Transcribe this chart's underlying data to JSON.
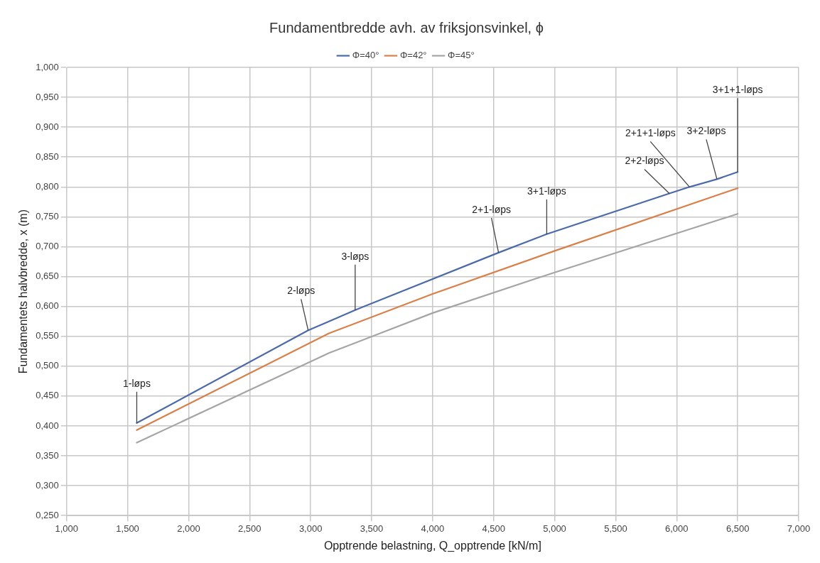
{
  "chart_data": {
    "type": "line",
    "title": "Fundamentbredde avh. av friksjonsvinkel, ϕ",
    "xlabel": "Opptrende belastning, Q_opptrende [kN/m]",
    "ylabel": "Fundamentets halvbredde, x (m)",
    "series": [
      {
        "name": "Φ=40°",
        "color": "#4a6aa8",
        "x": [
          1.575,
          2.98,
          3.15,
          3.365,
          4.54,
          4.935,
          5.94,
          6.105,
          6.33,
          6.5
        ],
        "values": [
          0.405,
          0.56,
          0.575,
          0.594,
          0.69,
          0.721,
          0.789,
          0.8,
          0.813,
          0.825
        ]
      },
      {
        "name": "Φ=42°",
        "color": "#d9804a",
        "x": [
          1.575,
          3.15,
          4.0,
          5.0,
          6.5
        ],
        "values": [
          0.393,
          0.555,
          0.621,
          0.693,
          0.798
        ]
      },
      {
        "name": "Φ=45°",
        "color": "#a5a5a5",
        "x": [
          1.575,
          3.15,
          4.0,
          5.0,
          6.5
        ],
        "values": [
          0.372,
          0.522,
          0.589,
          0.657,
          0.755
        ]
      }
    ],
    "xlim": [
      1.0,
      7.0
    ],
    "xticks": [
      {
        "value": 1.0,
        "label": "1,000"
      },
      {
        "value": 1.5,
        "label": "1,500"
      },
      {
        "value": 2.0,
        "label": "2,000"
      },
      {
        "value": 2.5,
        "label": "2,500"
      },
      {
        "value": 3.0,
        "label": "3,000"
      },
      {
        "value": 3.5,
        "label": "3,500"
      },
      {
        "value": 4.0,
        "label": "4,000"
      },
      {
        "value": 4.5,
        "label": "4,500"
      },
      {
        "value": 5.0,
        "label": "5,000"
      },
      {
        "value": 5.5,
        "label": "5,500"
      },
      {
        "value": 6.0,
        "label": "6,000"
      },
      {
        "value": 6.5,
        "label": "6,500"
      },
      {
        "value": 7.0,
        "label": "7,000"
      }
    ],
    "ylim": [
      0.25,
      1.0
    ],
    "yticks": [
      {
        "value": 0.25,
        "label": "0,250"
      },
      {
        "value": 0.3,
        "label": "0,300"
      },
      {
        "value": 0.35,
        "label": "0,350"
      },
      {
        "value": 0.4,
        "label": "0,400"
      },
      {
        "value": 0.45,
        "label": "0,450"
      },
      {
        "value": 0.5,
        "label": "0,500"
      },
      {
        "value": 0.55,
        "label": "0,550"
      },
      {
        "value": 0.6,
        "label": "0,600"
      },
      {
        "value": 0.65,
        "label": "0,650"
      },
      {
        "value": 0.7,
        "label": "0,700"
      },
      {
        "value": 0.75,
        "label": "0,750"
      },
      {
        "value": 0.8,
        "label": "0,800"
      },
      {
        "value": 0.85,
        "label": "0,850"
      },
      {
        "value": 0.9,
        "label": "0,900"
      },
      {
        "value": 0.95,
        "label": "0,950"
      },
      {
        "value": 1.0,
        "label": "1,000"
      }
    ],
    "annotations": [
      {
        "text": "1-løps",
        "x": 1.575,
        "y": 0.405
      },
      {
        "text": "2-løps",
        "x": 2.98,
        "y": 0.56
      },
      {
        "text": "3-løps",
        "x": 3.365,
        "y": 0.594
      },
      {
        "text": "2+1-løps",
        "x": 4.54,
        "y": 0.69
      },
      {
        "text": "3+1-løps",
        "x": 4.935,
        "y": 0.721
      },
      {
        "text": "2+2-løps",
        "x": 5.94,
        "y": 0.789
      },
      {
        "text": "2+1+1-løps",
        "x": 6.105,
        "y": 0.8
      },
      {
        "text": "3+2-løps",
        "x": 6.33,
        "y": 0.813
      },
      {
        "text": "3+1+1-løps",
        "x": 6.5,
        "y": 0.825
      }
    ],
    "grid": true,
    "legend": "top",
    "marker": "none",
    "line_style": "solid"
  }
}
